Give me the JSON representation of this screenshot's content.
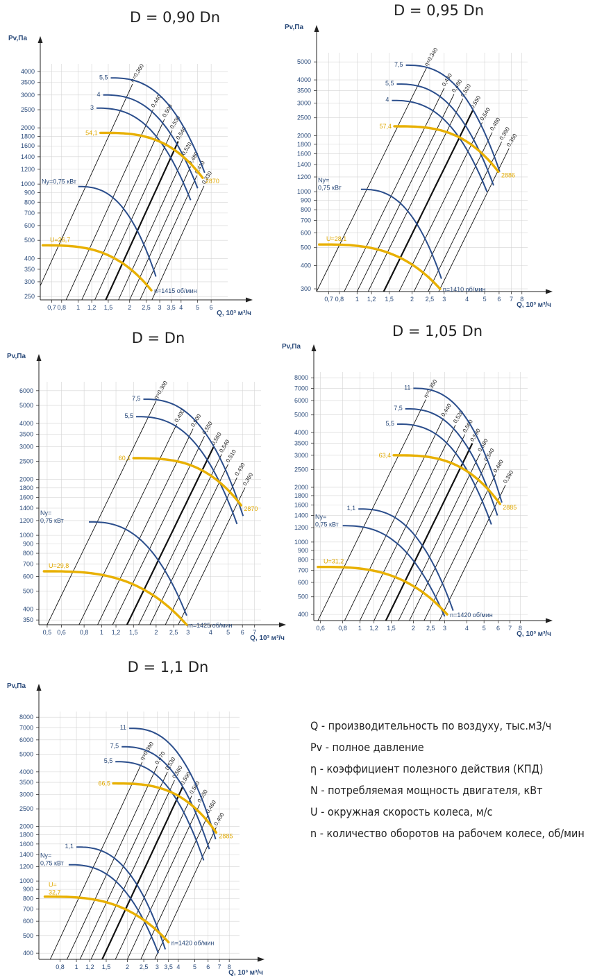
{
  "colors": {
    "power": "#2b4e8c",
    "speed": "#e8b000",
    "eta": "#111111",
    "grid": "#d4d4d4",
    "text": "#2a4a7a"
  },
  "axes": {
    "ylabel": "Pv,Па",
    "xlabel": "Q, 10³ м³/ч"
  },
  "chart_data": [
    {
      "type": "line",
      "title": "D = 0,90 Dn",
      "ylim": [
        240,
        4400
      ],
      "xlim": [
        0.6,
        7.5
      ],
      "yticks": [
        250,
        300,
        350,
        400,
        500,
        600,
        700,
        800,
        900,
        1000,
        1200,
        1400,
        1600,
        1800,
        2000,
        2500,
        3000,
        3500,
        4000
      ],
      "xticks": [
        0.7,
        0.8,
        1,
        1.2,
        1.5,
        2,
        2.5,
        3,
        3.5,
        4,
        5,
        6
      ],
      "xtick_labels": [
        "0,7",
        "0,8",
        "1",
        "1,2",
        "1,5",
        "2",
        "2,5",
        "3",
        "3,5",
        "4",
        "5",
        "6"
      ],
      "eta": [
        {
          "label": "η=0,360",
          "q0": 0.55,
          "q1": 2.08
        },
        {
          "label": "0,440",
          "q0": 0.85,
          "q1": 2.75
        },
        {
          "label": "0,500",
          "q0": 1.05,
          "q1": 3.2
        },
        {
          "label": "0,530",
          "q0": 1.25,
          "q1": 3.55
        },
        {
          "label": "0,540",
          "q0": 1.45,
          "q1": 3.85,
          "bold": true
        },
        {
          "label": "0,520",
          "q0": 1.72,
          "q1": 4.15
        },
        {
          "label": "0,480",
          "q0": 2.0,
          "q1": 4.55
        },
        {
          "label": "0,410",
          "q0": 2.3,
          "q1": 4.95
        },
        {
          "label": "0,330",
          "q0": 2.7,
          "q1": 5.45
        }
      ],
      "power_curves": [
        {
          "label": "5,5",
          "q_start": 1.55,
          "p_start": 3700,
          "q_end": 5.5,
          "p_end": 1150
        },
        {
          "label": "4",
          "q_start": 1.4,
          "p_start": 3000,
          "q_end": 5.0,
          "p_end": 950
        },
        {
          "label": "3",
          "q_start": 1.28,
          "p_start": 2550,
          "q_end": 4.55,
          "p_end": 820
        },
        {
          "label": "Ny=0,75 кВт",
          "q_start": 1.0,
          "p_start": 970,
          "q_end": 2.85,
          "p_end": 320,
          "label_side": "left"
        }
      ],
      "speed_curves": [
        {
          "label": "54,1",
          "q_start": 1.35,
          "p_start": 1880,
          "q_end": 5.35,
          "p_end": 1080,
          "end_label": "2870"
        },
        {
          "label": "U=26,7",
          "q_start": 0.62,
          "p_start": 470,
          "q_end": 2.68,
          "p_end": 270,
          "end_label": "n=1415 об/мин"
        }
      ]
    },
    {
      "type": "line",
      "title": "D = 0,95 Dn",
      "ylim": [
        290,
        5600
      ],
      "xlim": [
        0.6,
        8.6
      ],
      "yticks": [
        300,
        400,
        500,
        600,
        700,
        800,
        900,
        1000,
        1200,
        1400,
        1600,
        1800,
        2000,
        2500,
        3000,
        3500,
        4000,
        5000
      ],
      "xticks": [
        0.7,
        0.8,
        1,
        1.2,
        1.5,
        2,
        2.5,
        3,
        4,
        5,
        6,
        7,
        8
      ],
      "xtick_labels": [
        "0,7",
        "0,8",
        "1",
        "1,2",
        "1,5",
        "2",
        "2,5",
        "3",
        "4",
        "5",
        "6",
        "7",
        "8"
      ],
      "eta": [
        {
          "label": "η=0,340",
          "q0": 0.6,
          "q1": 2.4
        },
        {
          "label": "0,430",
          "q0": 0.85,
          "q1": 3.0
        },
        {
          "label": "0,480",
          "q0": 1.0,
          "q1": 3.4
        },
        {
          "label": "0,520",
          "q0": 1.15,
          "q1": 3.8
        },
        {
          "label": "0,550",
          "q0": 1.4,
          "q1": 4.3,
          "bold": true
        },
        {
          "label": "0,540",
          "q0": 1.7,
          "q1": 4.85
        },
        {
          "label": "0,480",
          "q0": 2.05,
          "q1": 5.5
        },
        {
          "label": "0,390",
          "q0": 2.45,
          "q1": 6.2
        },
        {
          "label": "0,350",
          "q0": 2.8,
          "q1": 6.8
        }
      ],
      "power_curves": [
        {
          "label": "7,5",
          "q_start": 1.85,
          "p_start": 4800,
          "q_end": 6.05,
          "p_end": 1280
        },
        {
          "label": "5,5",
          "q_start": 1.65,
          "p_start": 3800,
          "q_end": 5.6,
          "p_end": 1080
        },
        {
          "label": "4",
          "q_start": 1.55,
          "p_start": 3100,
          "q_end": 5.15,
          "p_end": 1000
        },
        {
          "label": "Ny=\n0,75 кВт",
          "q_start": 1.05,
          "p_start": 1030,
          "q_end": 2.9,
          "p_end": 340,
          "label_side": "left"
        }
      ],
      "speed_curves": [
        {
          "label": "57,4",
          "q_start": 1.6,
          "p_start": 2250,
          "q_end": 5.95,
          "p_end": 1280,
          "end_label": "2886"
        },
        {
          "label": "U=28,1",
          "q_start": 0.62,
          "p_start": 520,
          "q_end": 2.85,
          "p_end": 300,
          "end_label": "n=1410 об/мин"
        }
      ]
    },
    {
      "type": "line",
      "title": "D = Dn",
      "ylim": [
        330,
        6700
      ],
      "xlim": [
        0.45,
        7.6
      ],
      "yticks": [
        350,
        400,
        500,
        600,
        700,
        800,
        900,
        1000,
        1200,
        1400,
        1600,
        1800,
        2000,
        2500,
        3000,
        3500,
        4000,
        5000,
        6000
      ],
      "xticks": [
        0.5,
        0.6,
        0.8,
        1,
        1.2,
        1.5,
        2,
        2.5,
        3,
        4,
        5,
        6,
        7
      ],
      "xtick_labels": [
        "0,5",
        "0,6",
        "0,8",
        "1",
        "1,2",
        "1,5",
        "2",
        "2,5",
        "3",
        "4",
        "5",
        "6",
        "7"
      ],
      "eta": [
        {
          "label": "η=0,300",
          "q0": 0.5,
          "q1": 2.0
        },
        {
          "label": "0,400",
          "q0": 0.75,
          "q1": 2.6
        },
        {
          "label": "0,500",
          "q0": 0.95,
          "q1": 3.2
        },
        {
          "label": "0,550",
          "q0": 1.15,
          "q1": 3.7
        },
        {
          "label": "0,560",
          "q0": 1.38,
          "q1": 4.15,
          "bold": true
        },
        {
          "label": "0,540",
          "q0": 1.6,
          "q1": 4.6
        },
        {
          "label": "0,510",
          "q0": 1.85,
          "q1": 5.0
        },
        {
          "label": "0,430",
          "q0": 2.25,
          "q1": 5.6
        },
        {
          "label": "0,360",
          "q0": 2.65,
          "q1": 6.2
        }
      ],
      "power_curves": [
        {
          "label": "7,5",
          "q_start": 1.7,
          "p_start": 5400,
          "q_end": 6.05,
          "p_end": 1270
        },
        {
          "label": "5,5",
          "q_start": 1.55,
          "p_start": 4350,
          "q_end": 5.6,
          "p_end": 1150
        },
        {
          "label": "Ny=\n0,75 кВт",
          "q_start": 0.85,
          "p_start": 1180,
          "q_end": 2.95,
          "p_end": 370,
          "label_side": "left"
        }
      ],
      "speed_curves": [
        {
          "label": "60,1",
          "q_start": 1.5,
          "p_start": 2600,
          "q_end": 5.9,
          "p_end": 1450,
          "end_label": "2870"
        },
        {
          "label": "U=29,8",
          "q_start": 0.48,
          "p_start": 640,
          "q_end": 2.95,
          "p_end": 330,
          "end_label": "n=1425 об/мин"
        }
      ]
    },
    {
      "type": "line",
      "title": "D = 1,05 Dn",
      "ylim": [
        370,
        8600
      ],
      "xlim": [
        0.55,
        8.8
      ],
      "yticks": [
        400,
        500,
        600,
        700,
        800,
        900,
        1000,
        1200,
        1400,
        1600,
        1800,
        2000,
        2500,
        3000,
        3500,
        4000,
        5000,
        6000,
        7000,
        8000
      ],
      "xticks": [
        0.6,
        0.8,
        1,
        1.2,
        1.5,
        2,
        2.5,
        3,
        4,
        5,
        6,
        7,
        8
      ],
      "xtick_labels": [
        "0,6",
        "0,8",
        "1",
        "1,2",
        "1,5",
        "2",
        "2,5",
        "3",
        "4",
        "5",
        "6",
        "7",
        "8"
      ],
      "eta": [
        {
          "label": "η=0,350",
          "q0": 0.58,
          "q1": 2.35
        },
        {
          "label": "0,440",
          "q0": 0.82,
          "q1": 2.95
        },
        {
          "label": "0,520",
          "q0": 1.0,
          "q1": 3.45
        },
        {
          "label": "0,560",
          "q0": 1.2,
          "q1": 3.9
        },
        {
          "label": "0,590",
          "q0": 1.4,
          "q1": 4.3,
          "bold": true
        },
        {
          "label": "0,580",
          "q0": 1.65,
          "q1": 4.75
        },
        {
          "label": "0,540",
          "q0": 1.9,
          "q1": 5.15
        },
        {
          "label": "0,480",
          "q0": 2.3,
          "q1": 5.8
        },
        {
          "label": "0,360",
          "q0": 2.8,
          "q1": 6.6
        }
      ],
      "power_curves": [
        {
          "label": "11",
          "q_start": 2.0,
          "p_start": 7000,
          "q_end": 6.3,
          "p_end": 1650
        },
        {
          "label": "7,5",
          "q_start": 1.8,
          "p_start": 5400,
          "q_end": 5.95,
          "p_end": 1400
        },
        {
          "label": "5,5",
          "q_start": 1.62,
          "p_start": 4450,
          "q_end": 5.5,
          "p_end": 1250
        },
        {
          "label": "1,1",
          "q_start": 0.98,
          "p_start": 1520,
          "q_end": 3.35,
          "p_end": 420
        },
        {
          "label": "Ny=\n0,75 кВт",
          "q_start": 0.8,
          "p_start": 1230,
          "q_end": 3.0,
          "p_end": 390,
          "label_side": "left"
        }
      ],
      "speed_curves": [
        {
          "label": "63,4",
          "q_start": 1.55,
          "p_start": 3000,
          "q_end": 6.15,
          "p_end": 1620,
          "end_label": "2885"
        },
        {
          "label": "U=31,2",
          "q_start": 0.58,
          "p_start": 730,
          "q_end": 3.1,
          "p_end": 400,
          "end_label": "n=1420 об/мин"
        }
      ]
    },
    {
      "type": "line",
      "title": "D = 1,1 Dn",
      "ylim": [
        370,
        8600
      ],
      "xlim": [
        0.6,
        9.2
      ],
      "yticks": [
        400,
        500,
        600,
        700,
        800,
        900,
        1000,
        1200,
        1400,
        1600,
        1800,
        2000,
        2500,
        3000,
        3500,
        4000,
        5000,
        6000,
        7000,
        8000
      ],
      "xticks": [
        0.8,
        1,
        1.2,
        1.5,
        2,
        2.5,
        3,
        3.5,
        4,
        5,
        6,
        7,
        8
      ],
      "xtick_labels": [
        "0,8",
        "1",
        "1,2",
        "1,5",
        "2",
        "2,5",
        "3",
        "3,5",
        "4",
        "5",
        "6",
        "7",
        "8"
      ],
      "eta": [
        {
          "label": "η=0,390",
          "q0": 0.7,
          "q1": 2.45
        },
        {
          "label": "0,470",
          "q0": 0.88,
          "q1": 3.0
        },
        {
          "label": "0,530",
          "q0": 1.05,
          "q1": 3.45
        },
        {
          "label": "0,560",
          "q0": 1.22,
          "q1": 3.8
        },
        {
          "label": "0,590",
          "q0": 1.42,
          "q1": 4.25,
          "bold": true
        },
        {
          "label": "0,580",
          "q0": 1.7,
          "q1": 4.8
        },
        {
          "label": "0,530",
          "q0": 2.0,
          "q1": 5.35
        },
        {
          "label": "0,460",
          "q0": 2.4,
          "q1": 6.0
        },
        {
          "label": "0,400",
          "q0": 2.9,
          "q1": 6.7
        }
      ],
      "power_curves": [
        {
          "label": "11",
          "q_start": 2.05,
          "p_start": 6950,
          "q_end": 6.65,
          "p_end": 1700
        },
        {
          "label": "7,5",
          "q_start": 1.85,
          "p_start": 5500,
          "q_end": 6.1,
          "p_end": 1500
        },
        {
          "label": "5,5",
          "q_start": 1.7,
          "p_start": 4550,
          "q_end": 5.65,
          "p_end": 1300
        },
        {
          "label": "1,1",
          "q_start": 1.0,
          "p_start": 1540,
          "q_end": 3.35,
          "p_end": 420
        },
        {
          "label": "Ny=\n0,75 кВт",
          "q_start": 0.9,
          "p_start": 1230,
          "q_end": 3.05,
          "p_end": 400,
          "label_side": "left"
        }
      ],
      "speed_curves": [
        {
          "label": "66,5",
          "q_start": 1.65,
          "p_start": 3450,
          "q_end": 6.7,
          "p_end": 1850,
          "end_label": "2885"
        },
        {
          "label": "U=\n32,7",
          "q_start": 0.65,
          "p_start": 820,
          "q_end": 3.5,
          "p_end": 460,
          "end_label": "n=1420 об/мин"
        }
      ]
    }
  ],
  "legend": [
    "Q - производительность по воздуху, тыс.м3/ч",
    "Pv - полное давление",
    "η - коэффициент полезного действия (КПД)",
    "N - потребляемая мощность двигателя, кВт",
    "U - окружная скорость колеса, м/с",
    "n - количество оборотов на рабочем колесе, об/мин"
  ]
}
